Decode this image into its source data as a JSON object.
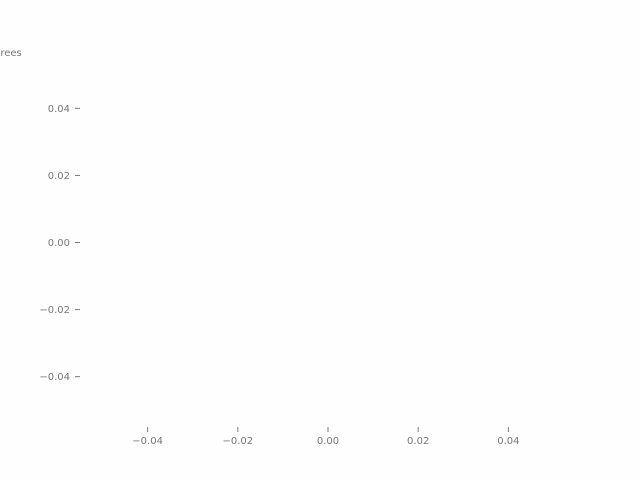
{
  "chart_data": {
    "type": "line",
    "title": "",
    "xlabel": "",
    "ylabel": "grees",
    "series": [],
    "xlim": [
      -0.055,
      0.055
    ],
    "ylim": [
      -0.055,
      0.055
    ],
    "x_ticks": [
      -0.04,
      -0.02,
      0.0,
      0.02,
      0.04
    ],
    "x_tick_labels": [
      "−0.04",
      "−0.02",
      "0.00",
      "0.02",
      "0.04"
    ],
    "y_ticks": [
      0.04,
      0.02,
      0.0,
      -0.02,
      -0.04
    ],
    "y_tick_labels": [
      "0.04",
      "0.02",
      "0.00",
      "−0.02",
      "−0.04"
    ],
    "grid": false,
    "legend": "none",
    "colors": {
      "background": "#fefefe",
      "ticks": "#777777"
    }
  }
}
